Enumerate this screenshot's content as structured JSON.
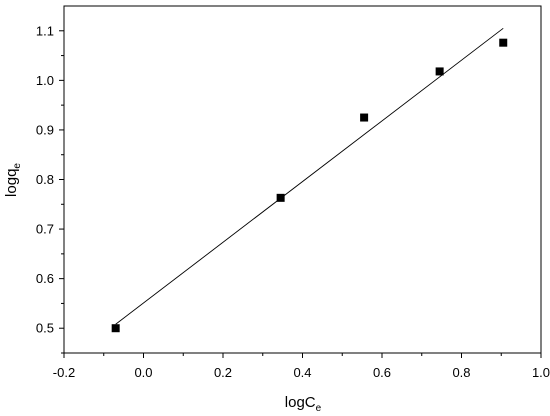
{
  "chart_data": {
    "type": "scatter",
    "xlabel": "logC",
    "xlabel_sub": "e",
    "ylabel": "logq",
    "ylabel_sub": "e",
    "xlim": [
      -0.2,
      1.0
    ],
    "ylim": [
      0.45,
      1.15
    ],
    "xticks": [
      -0.2,
      0.0,
      0.2,
      0.4,
      0.6,
      0.8,
      1.0
    ],
    "xtick_labels": [
      "-0.2",
      "0.0",
      "0.2",
      "0.4",
      "0.6",
      "0.8",
      "1.0"
    ],
    "yticks": [
      0.5,
      0.6,
      0.7,
      0.8,
      0.9,
      1.0,
      1.1
    ],
    "ytick_labels": [
      "0.5",
      "0.6",
      "0.7",
      "0.8",
      "0.9",
      "1.0",
      "1.1"
    ],
    "grid": false,
    "legend": false,
    "series": [
      {
        "marker": "square",
        "color": "#000000",
        "points": [
          {
            "x": -0.07,
            "y": 0.5
          },
          {
            "x": 0.345,
            "y": 0.763
          },
          {
            "x": 0.555,
            "y": 0.925
          },
          {
            "x": 0.745,
            "y": 1.018
          },
          {
            "x": 0.905,
            "y": 1.076
          }
        ]
      }
    ],
    "fit_line": {
      "color": "#000000",
      "x": [
        -0.07,
        0.905
      ],
      "y": [
        0.508,
        1.105
      ]
    }
  }
}
